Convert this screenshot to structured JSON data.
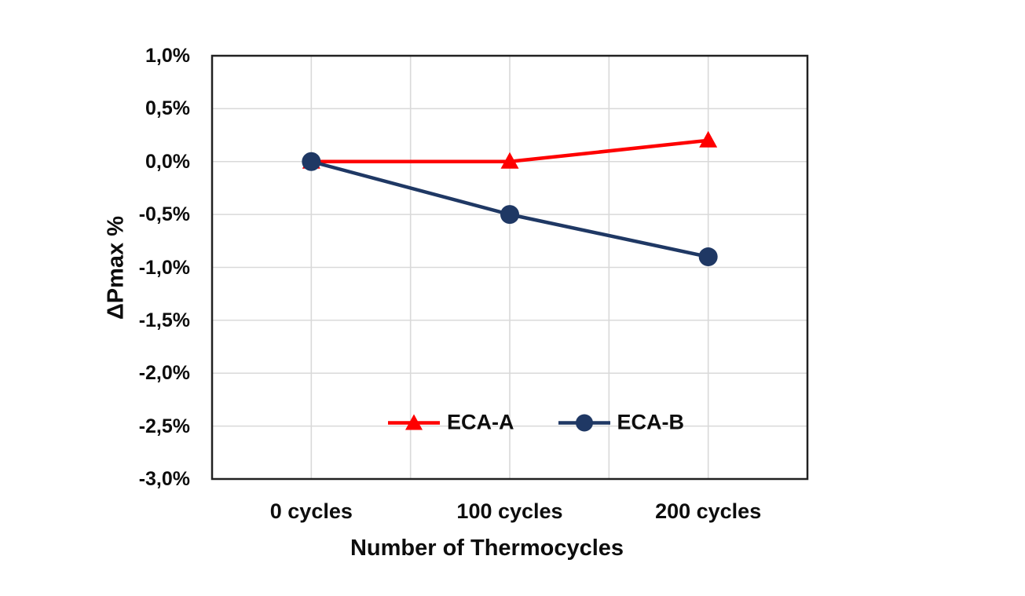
{
  "page": {
    "background_color": "#ffffff"
  },
  "chart_data": {
    "type": "line",
    "title": "",
    "xlabel": "Number of Thermocycles",
    "ylabel": "ΔPmax %",
    "categories": [
      "0 cycles",
      "100 cycles",
      "200 cycles"
    ],
    "series": [
      {
        "name": "ECA-A",
        "values": [
          0.0,
          0.0,
          0.2
        ],
        "color": "#fe0000",
        "marker": "triangle"
      },
      {
        "name": "ECA-B",
        "values": [
          0.0,
          -0.5,
          -0.9
        ],
        "color": "#1f3864",
        "marker": "circle"
      }
    ],
    "ylim": [
      -3.0,
      1.0
    ],
    "y_tick_step": 0.5,
    "y_tick_labels": [
      "1,0%",
      "0,5%",
      "0,0%",
      "-0,5%",
      "-1,0%",
      "-1,5%",
      "-2,0%",
      "-2,5%",
      "-3,0%"
    ],
    "grid": true,
    "gridline_color": "#d9d9d9",
    "plot_border_color": "#212121",
    "text_color": "#0d0d0d",
    "legend_position": "inside-bottom-center",
    "legend_entries": [
      "ECA-A",
      "ECA-B"
    ]
  }
}
